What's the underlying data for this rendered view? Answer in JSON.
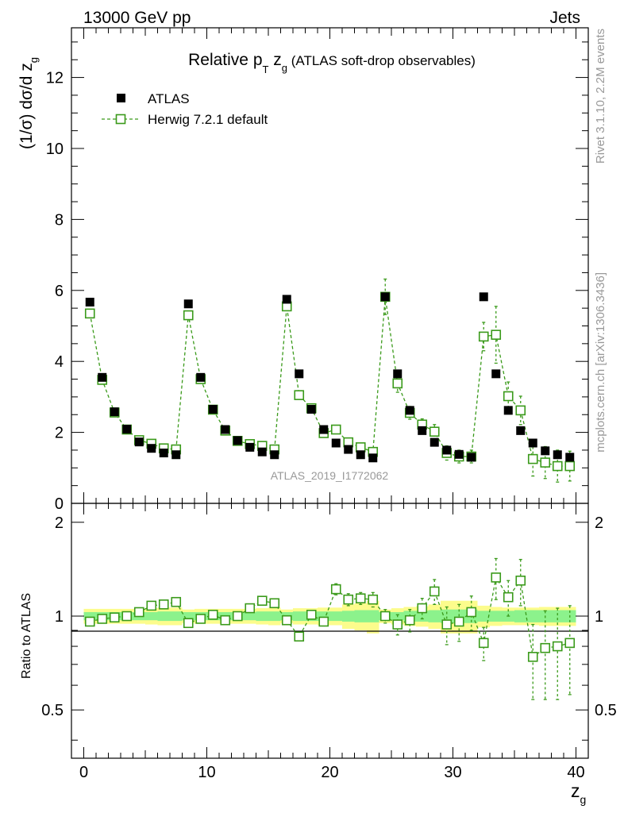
{
  "header": {
    "left": "13000 GeV pp",
    "right": "Jets"
  },
  "side_text": {
    "rivet": "Rivet 3.1.10,  2.2M events",
    "mcplots": "mcplots.cern.ch [arXiv:1306.3436]"
  },
  "watermark": "ATLAS_2019_I1772062",
  "chart_data": {
    "type": "scatter",
    "title": "Relative pT zg (ATLAS soft-drop observables)",
    "title_parts": {
      "main": "Relative p",
      "sub1": "T",
      "mid": " z",
      "sub2": "g",
      "paren": " (ATLAS soft-drop observables)"
    },
    "ylabel": "(1/σ) dσ/d z_g",
    "ylabel_parts": {
      "main": "(1/σ) dσ/d z",
      "sub": "g"
    },
    "xlabel": "z_g",
    "xlabel_parts": {
      "main": "z",
      "sub": "g"
    },
    "ratio_ylabel": "Ratio to ATLAS",
    "xlim": [
      -1,
      41
    ],
    "ylim": [
      0,
      13.4
    ],
    "ratio_ylim": [
      0.35,
      2.3
    ],
    "x_ticks": [
      0,
      10,
      20,
      30,
      40
    ],
    "y_ticks": [
      0,
      2,
      4,
      6,
      8,
      10,
      12
    ],
    "ratio_ticks": [
      0.5,
      1,
      2
    ],
    "legend": [
      {
        "name": "ATLAS",
        "marker": "filled-square",
        "color": "#000000"
      },
      {
        "name": "Herwig 7.2.1 default",
        "marker": "open-square-dashed",
        "color": "#3a9a1a"
      }
    ],
    "x": [
      0.5,
      1.5,
      2.5,
      3.5,
      4.5,
      5.5,
      6.5,
      7.5,
      8.5,
      9.5,
      10.5,
      11.5,
      12.5,
      13.5,
      14.5,
      15.5,
      16.5,
      17.5,
      18.5,
      19.5,
      20.5,
      21.5,
      22.5,
      23.5,
      24.5,
      25.5,
      26.5,
      27.5,
      28.5,
      29.5,
      30.5,
      31.5,
      32.5,
      33.5,
      34.5,
      35.5,
      36.5,
      37.5,
      38.5,
      39.5
    ],
    "series": [
      {
        "name": "ATLAS",
        "values": [
          5.67,
          3.55,
          2.58,
          2.09,
          1.73,
          1.55,
          1.42,
          1.37,
          5.62,
          3.55,
          2.65,
          2.08,
          1.77,
          1.58,
          1.45,
          1.37,
          5.75,
          3.65,
          2.65,
          2.08,
          1.7,
          1.52,
          1.37,
          1.28,
          5.82,
          3.65,
          2.62,
          2.05,
          1.72,
          1.5,
          1.38,
          1.3,
          5.82,
          3.65,
          2.62,
          2.05,
          1.7,
          1.48,
          1.37,
          1.3
        ]
      },
      {
        "name": "Herwig 7.2.1 default",
        "values": [
          5.35,
          3.48,
          2.56,
          2.08,
          1.78,
          1.68,
          1.55,
          1.52,
          5.3,
          3.5,
          2.64,
          2.05,
          1.76,
          1.67,
          1.62,
          1.52,
          5.55,
          3.05,
          2.68,
          1.98,
          2.08,
          1.72,
          1.58,
          1.45,
          5.82,
          3.38,
          2.55,
          2.22,
          2.02,
          1.42,
          1.32,
          1.32,
          4.7,
          4.75,
          3.02,
          2.62,
          1.25,
          1.15,
          1.05,
          1.05
        ],
        "errors": [
          0.05,
          0.05,
          0.04,
          0.03,
          0.03,
          0.03,
          0.03,
          0.03,
          0.05,
          0.05,
          0.04,
          0.03,
          0.03,
          0.03,
          0.03,
          0.03,
          0.06,
          0.08,
          0.06,
          0.06,
          0.08,
          0.07,
          0.07,
          0.08,
          0.5,
          0.25,
          0.18,
          0.16,
          0.2,
          0.2,
          0.18,
          0.18,
          0.4,
          0.8,
          0.4,
          0.4,
          0.48,
          0.45,
          0.45,
          0.42
        ],
        "ratio": [
          0.96,
          0.98,
          0.99,
          1.0,
          1.03,
          1.08,
          1.09,
          1.11,
          0.95,
          0.98,
          1.01,
          0.97,
          1.0,
          1.06,
          1.12,
          1.1,
          0.97,
          0.86,
          1.01,
          0.96,
          1.22,
          1.13,
          1.14,
          1.13,
          1.0,
          0.94,
          0.97,
          1.06,
          1.2,
          0.94,
          0.96,
          1.03,
          0.82,
          1.33,
          1.15,
          1.3,
          0.74,
          0.79,
          0.8,
          0.82
        ],
        "ratio_errors": [
          0.01,
          0.01,
          0.01,
          0.01,
          0.01,
          0.01,
          0.01,
          0.01,
          0.01,
          0.01,
          0.01,
          0.01,
          0.01,
          0.01,
          0.01,
          0.01,
          0.01,
          0.02,
          0.02,
          0.03,
          0.05,
          0.05,
          0.05,
          0.06,
          0.05,
          0.07,
          0.08,
          0.08,
          0.11,
          0.13,
          0.13,
          0.13,
          0.1,
          0.2,
          0.15,
          0.22,
          0.2,
          0.25,
          0.26,
          0.26
        ]
      }
    ],
    "uncertainty_bands": {
      "inner_halfwidth": [
        0.03,
        0.03,
        0.03,
        0.03,
        0.03,
        0.03,
        0.035,
        0.035,
        0.03,
        0.03,
        0.03,
        0.03,
        0.03,
        0.03,
        0.035,
        0.035,
        0.03,
        0.035,
        0.035,
        0.035,
        0.035,
        0.04,
        0.045,
        0.045,
        0.03,
        0.03,
        0.04,
        0.04,
        0.045,
        0.05,
        0.05,
        0.05,
        0.04,
        0.04,
        0.04,
        0.045,
        0.045,
        0.045,
        0.045,
        0.045
      ],
      "outer_halfwidth": [
        0.055,
        0.055,
        0.055,
        0.055,
        0.055,
        0.06,
        0.065,
        0.065,
        0.05,
        0.055,
        0.055,
        0.055,
        0.055,
        0.055,
        0.06,
        0.065,
        0.05,
        0.06,
        0.06,
        0.065,
        0.065,
        0.09,
        0.1,
        0.12,
        0.05,
        0.06,
        0.07,
        0.075,
        0.09,
        0.12,
        0.12,
        0.12,
        0.08,
        0.07,
        0.065,
        0.065,
        0.065,
        0.07,
        0.07,
        0.07
      ],
      "inner_color": "#8cf28c",
      "outer_color": "#fcfc8c"
    }
  }
}
